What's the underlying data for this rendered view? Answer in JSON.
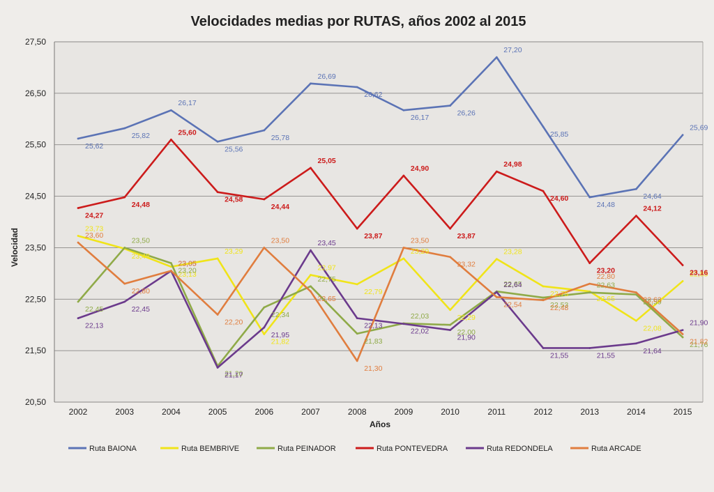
{
  "chart_data": {
    "type": "line",
    "title": "Velocidades medias por RUTAS, años 2002 al 2015",
    "xlabel": "Años",
    "ylabel": "Velocidad",
    "ylim": [
      20.5,
      27.5
    ],
    "yticks": [
      "20,50",
      "21,50",
      "22,50",
      "23,50",
      "24,50",
      "25,50",
      "26,50",
      "27,50"
    ],
    "categories": [
      "2002",
      "2003",
      "2004",
      "2005",
      "2006",
      "2007",
      "2008",
      "2009",
      "2010",
      "2011",
      "2012",
      "2013",
      "2014",
      "2015"
    ],
    "grid": true,
    "legend_position": "bottom",
    "series": [
      {
        "name": "Ruta BAIONA",
        "color": "#5b73b5",
        "values": [
          25.62,
          25.82,
          26.17,
          25.56,
          25.78,
          26.69,
          26.62,
          26.17,
          26.26,
          27.2,
          25.85,
          24.48,
          24.64,
          25.69
        ],
        "labels": [
          "25,62",
          "25,82",
          "26,17",
          "25,56",
          "25,78",
          "26,69",
          "26,62",
          "26,17",
          "26,26",
          "27,20",
          "25,85",
          "24,48",
          "24,64",
          "25,69"
        ]
      },
      {
        "name": "Ruta BEMBRIVE",
        "color": "#f0e419",
        "values": [
          23.73,
          23.48,
          23.13,
          23.29,
          21.82,
          22.97,
          22.79,
          23.29,
          22.29,
          23.28,
          22.75,
          22.65,
          22.08,
          22.85
        ],
        "labels": [
          "23,73",
          "23,48",
          "23,13",
          "23,29",
          "21,82",
          "22,97",
          "22,79",
          "23,29",
          "22,29",
          "23,28",
          "22,75",
          "22,65",
          "22,08",
          "22,85"
        ]
      },
      {
        "name": "Ruta PEINADOR",
        "color": "#8faa48",
        "values": [
          22.45,
          23.5,
          23.2,
          21.2,
          22.34,
          22.75,
          21.83,
          22.03,
          22.0,
          22.65,
          22.53,
          22.63,
          22.59,
          21.76
        ],
        "labels": [
          "22,45",
          "23,50",
          "23,20",
          "21,20",
          "22,34",
          "22,75",
          "21,83",
          "22,03",
          "22,00",
          "22,65",
          "22,53",
          "22,63",
          "22,59",
          "21,76"
        ]
      },
      {
        "name": "Ruta PONTEVEDRA",
        "color": "#cc1b1b",
        "values": [
          24.27,
          24.48,
          25.6,
          24.58,
          24.44,
          25.05,
          23.87,
          24.9,
          23.87,
          24.98,
          24.6,
          23.2,
          24.12,
          23.16
        ],
        "labels": [
          "24,27",
          "24,48",
          "25,60",
          "24,58",
          "24,44",
          "25,05",
          "23,87",
          "24,90",
          "23,87",
          "24,98",
          "24,60",
          "23,20",
          "24,12",
          "23,16"
        ]
      },
      {
        "name": "Ruta REDONDELA",
        "color": "#6b3a8c",
        "values": [
          22.13,
          22.45,
          23.05,
          21.17,
          21.95,
          23.45,
          22.13,
          22.02,
          21.9,
          22.64,
          21.55,
          21.55,
          21.64,
          21.9
        ],
        "labels": [
          "22,13",
          "22,45",
          "23,05",
          "21,17",
          "21,95",
          "23,45",
          "22,13",
          "22,02",
          "21,90",
          "22,64",
          "21,55",
          "21,55",
          "21,64",
          "21,90"
        ]
      },
      {
        "name": "Ruta ARCADE",
        "color": "#e07d3e",
        "values": [
          23.6,
          22.8,
          23.05,
          22.2,
          23.5,
          22.65,
          21.3,
          23.5,
          23.32,
          22.54,
          22.48,
          22.8,
          22.63,
          21.82
        ],
        "labels": [
          "23,60",
          "22,80",
          "23,05",
          "22,20",
          "23,50",
          "22,65",
          "21,30",
          "23,50",
          "23,32",
          "22,54",
          "22,48",
          "22,80",
          "22,63",
          "21,82"
        ]
      }
    ]
  }
}
